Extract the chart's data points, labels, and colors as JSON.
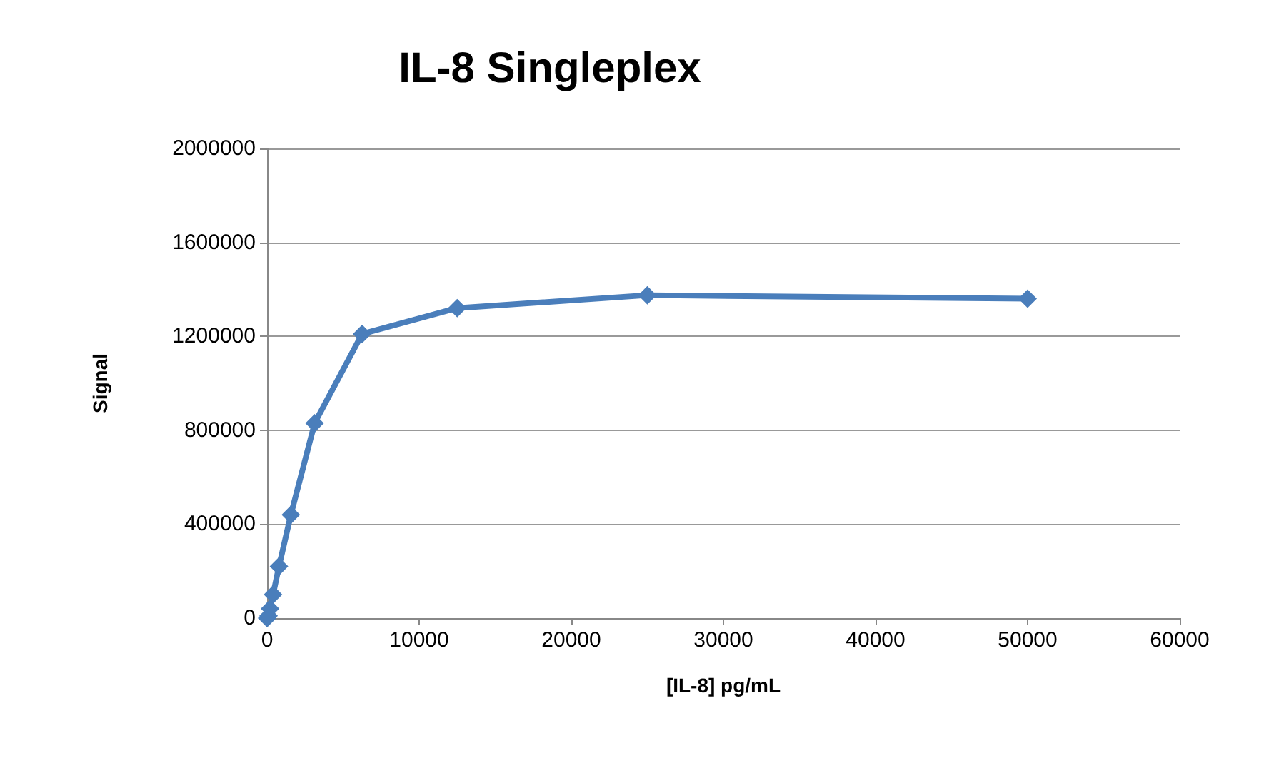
{
  "chart_data": {
    "type": "line",
    "title": "IL-8 Singleplex",
    "xlabel": "[IL-8] pg/mL",
    "ylabel": "Signal",
    "x": [
      0,
      98,
      195,
      390,
      781,
      1562,
      3125,
      6250,
      12500,
      25000,
      50000
    ],
    "series": [
      {
        "color": "#4a7ebb",
        "values": [
          0,
          10000,
          40000,
          100000,
          220000,
          440000,
          830000,
          1210000,
          1320000,
          1375000,
          1360000
        ]
      }
    ],
    "xlim": [
      0,
      60000
    ],
    "xticks": [
      0,
      10000,
      20000,
      30000,
      40000,
      50000,
      60000
    ],
    "ylim": [
      0,
      2000000
    ],
    "yticks": [
      0,
      400000,
      800000,
      1200000,
      1600000,
      2000000
    ],
    "grid": "y",
    "marker": "diamond",
    "line_style": "solid"
  }
}
